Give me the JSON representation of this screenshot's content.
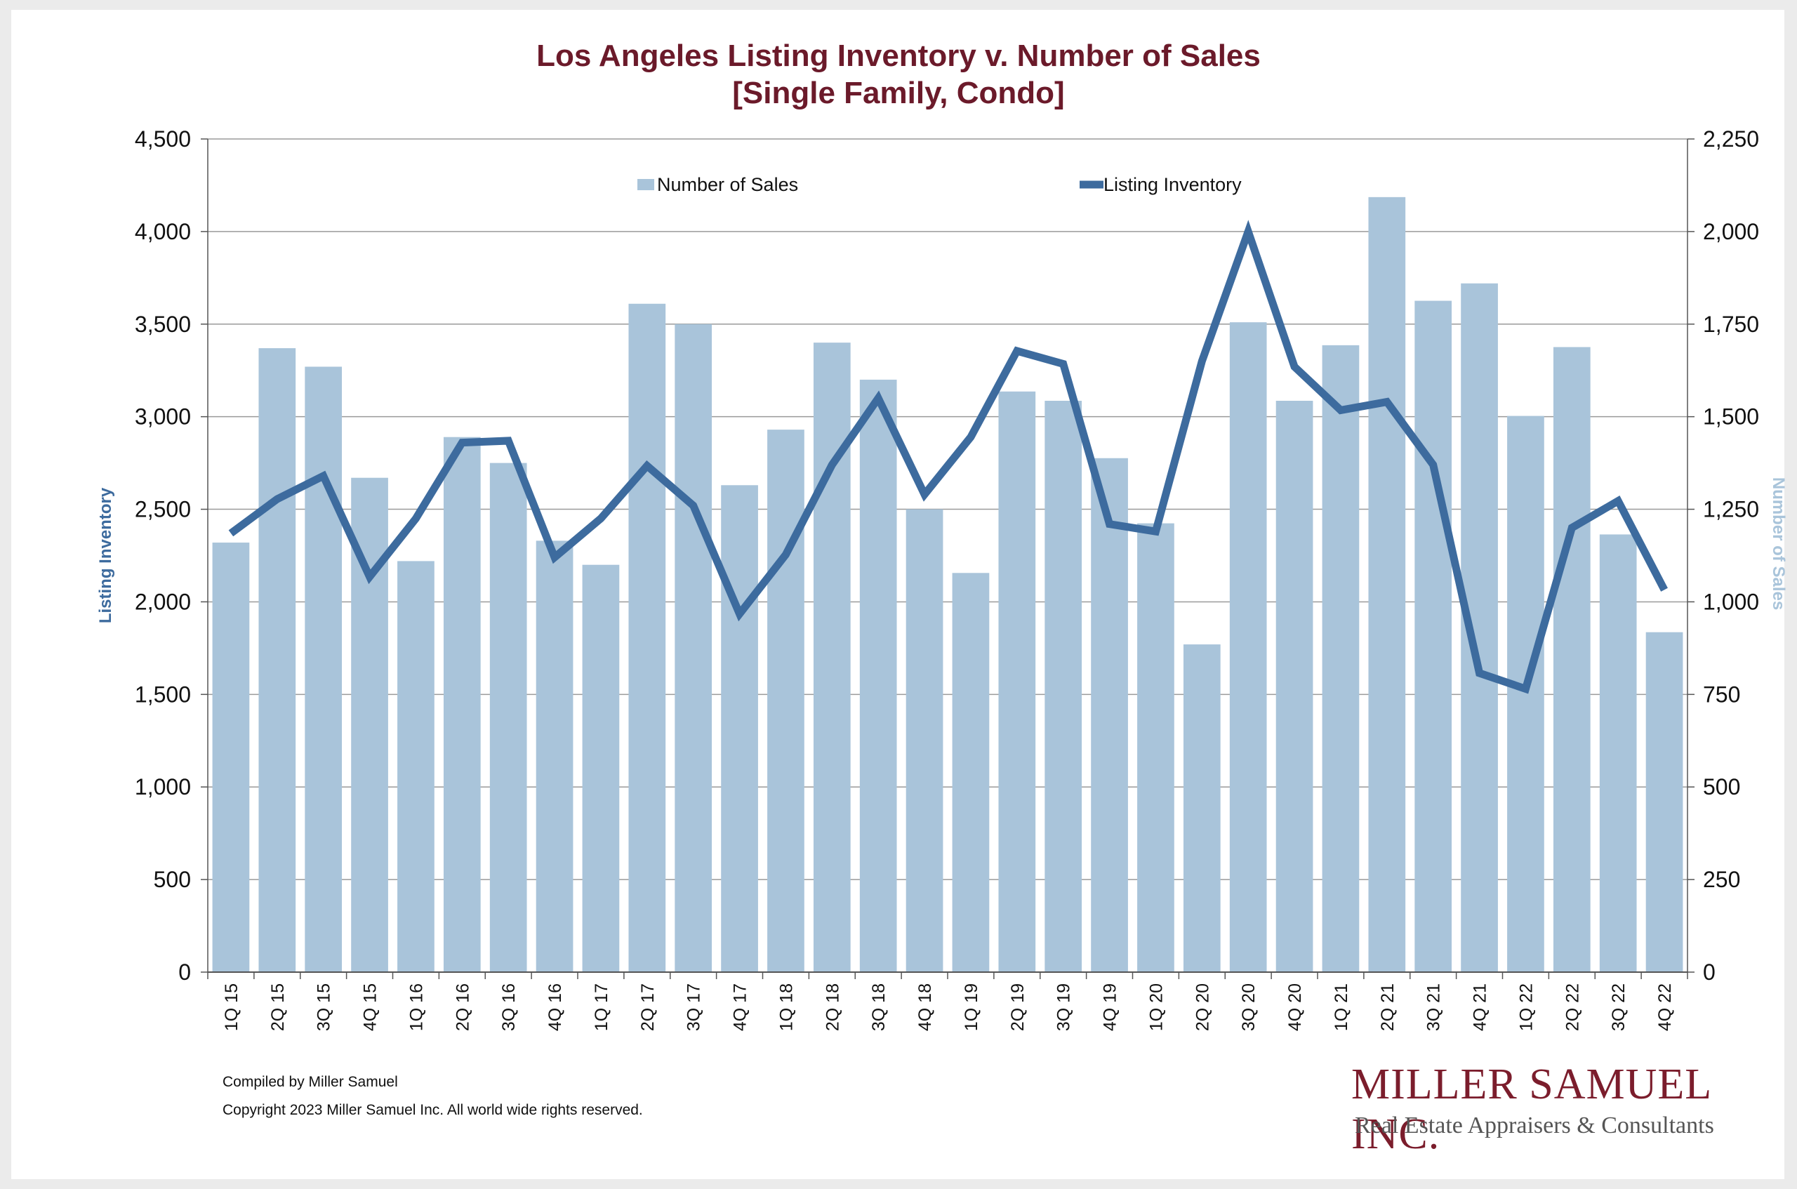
{
  "title_line1": "Los Angeles Listing Inventory v. Number of Sales",
  "title_line2": "[Single Family, Condo]",
  "footnote1": "Compiled by Miller Samuel",
  "footnote2": "Copyright 2023 Miller Samuel Inc.  All world wide rights reserved.",
  "logo": {
    "name": "Miller Samuel Inc.",
    "tagline": "Real Estate Appraisers & Consultants"
  },
  "colors": {
    "bars": "#a9c4da",
    "line": "#3d6b9e",
    "title": "#6b1a2a",
    "left_axis_label": "#3d6b9e",
    "right_axis_label": "#a9c4da",
    "grid": "#9a9a9a"
  },
  "chart_data": {
    "type": "bar",
    "categories": [
      "1Q 15",
      "2Q 15",
      "3Q 15",
      "4Q 15",
      "1Q 16",
      "2Q 16",
      "3Q 16",
      "4Q 16",
      "1Q 17",
      "2Q 17",
      "3Q 17",
      "4Q 17",
      "1Q 18",
      "2Q 18",
      "3Q 18",
      "4Q 18",
      "1Q 19",
      "2Q 19",
      "3Q 19",
      "4Q 19",
      "1Q 20",
      "2Q 20",
      "3Q 20",
      "4Q 20",
      "1Q 21",
      "2Q 21",
      "3Q 21",
      "4Q 21",
      "1Q 22",
      "2Q 22",
      "3Q 22",
      "4Q 22"
    ],
    "series": [
      {
        "name": "Number of Sales",
        "type": "bar",
        "axis": "right",
        "values": [
          1160,
          1685,
          1635,
          1335,
          1110,
          1445,
          1375,
          1165,
          1100,
          1805,
          1750,
          1315,
          1465,
          1700,
          1600,
          1250,
          1078,
          1568,
          1543,
          1388,
          1212,
          885,
          1755,
          1543,
          1693,
          2093,
          1813,
          1860,
          1502,
          1688,
          1182,
          918
        ]
      },
      {
        "name": "Listing Inventory",
        "type": "line",
        "axis": "left",
        "values": [
          2370,
          2555,
          2680,
          2135,
          2450,
          2860,
          2870,
          2240,
          2450,
          2735,
          2520,
          1935,
          2255,
          2740,
          3100,
          2580,
          2890,
          3355,
          3285,
          2420,
          2380,
          3300,
          4000,
          3270,
          3035,
          3080,
          2740,
          1615,
          1530,
          2400,
          2545,
          2065
        ]
      }
    ],
    "y_left": {
      "label": "Listing Inventory",
      "ticks": [
        "0",
        "500",
        "1,000",
        "1,500",
        "2,000",
        "2,500",
        "3,000",
        "3,500",
        "4,000",
        "4,500"
      ],
      "ylim": [
        0,
        4500
      ]
    },
    "y_right": {
      "label": "Number of Sales",
      "ticks": [
        "0",
        "250",
        "500",
        "750",
        "1,000",
        "1,250",
        "1,500",
        "1,750",
        "2,000",
        "2,250"
      ],
      "ylim": [
        0,
        2250
      ]
    },
    "grid": true,
    "legend_position": "top"
  }
}
